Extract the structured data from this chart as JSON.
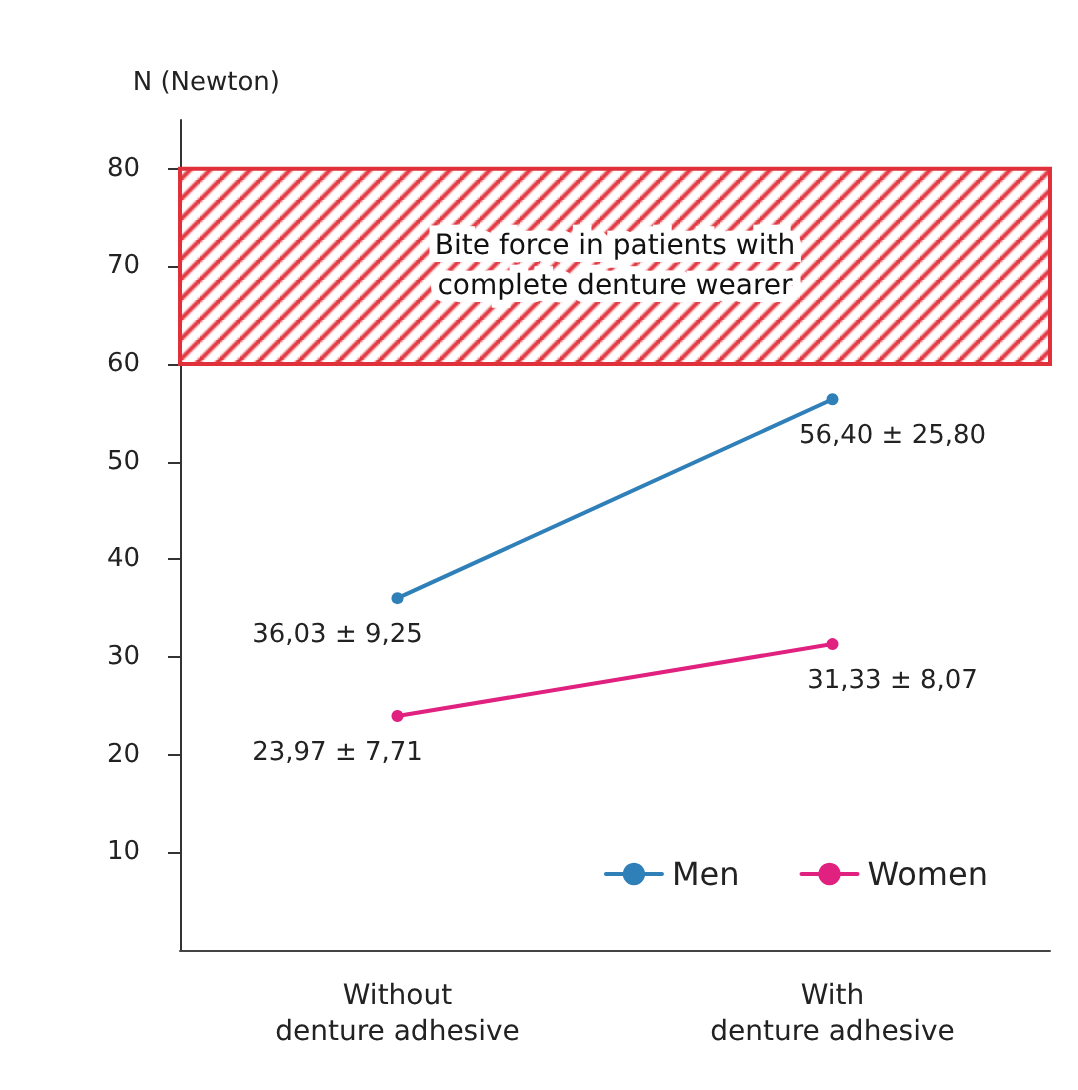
{
  "chart_data": {
    "type": "line",
    "ylabel": "N (Newton)",
    "categories": [
      "Without\ndenture adhesive",
      "With\ndenture adhesive"
    ],
    "series": [
      {
        "name": "Men",
        "color": "#2f7fb8",
        "values": [
          36.03,
          56.4
        ],
        "value_labels": [
          "36,03 ± 9,25",
          "56,40 ± 25,80"
        ]
      },
      {
        "name": "Women",
        "color": "#e0217f",
        "values": [
          23.97,
          31.33
        ],
        "value_labels": [
          "23,97 ± 7,71",
          "31,33 ± 8,07"
        ]
      }
    ],
    "ylim": [
      0,
      85
    ],
    "yticks": [
      10,
      20,
      30,
      40,
      50,
      60,
      70,
      80
    ],
    "bands": [
      {
        "axis": "y",
        "from": 60,
        "to": 80,
        "label": "Bite force in patients with\ncomplete denture wearer",
        "color": "#e0303a"
      }
    ],
    "legend": "bottom right",
    "marker": "circle",
    "line_style": "solid",
    "grid": false
  }
}
